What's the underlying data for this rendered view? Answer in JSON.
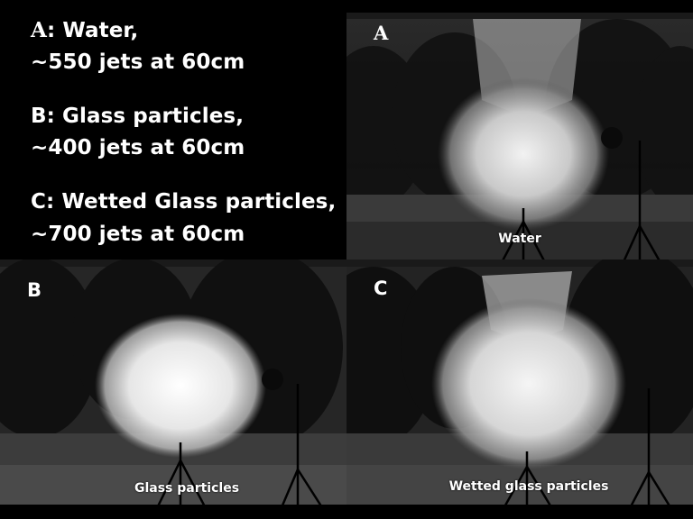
{
  "legend": {
    "a_letter": "A",
    "a_line1": ": Water,",
    "a_line2": "~550 jets at 60cm",
    "b_line1": "B: Glass particles,",
    "b_line2": "~400 jets at 60cm",
    "c_line1": "C: Wetted Glass particles,",
    "c_line2": "~700 jets at 60cm"
  },
  "panels": {
    "a": {
      "letter": "A",
      "caption": "Water"
    },
    "b": {
      "letter": "B",
      "caption": "Glass particles"
    },
    "c": {
      "letter": "C",
      "caption": "Wetted glass particles"
    }
  },
  "colors": {
    "background": "#000000",
    "text": "#ffffff"
  }
}
